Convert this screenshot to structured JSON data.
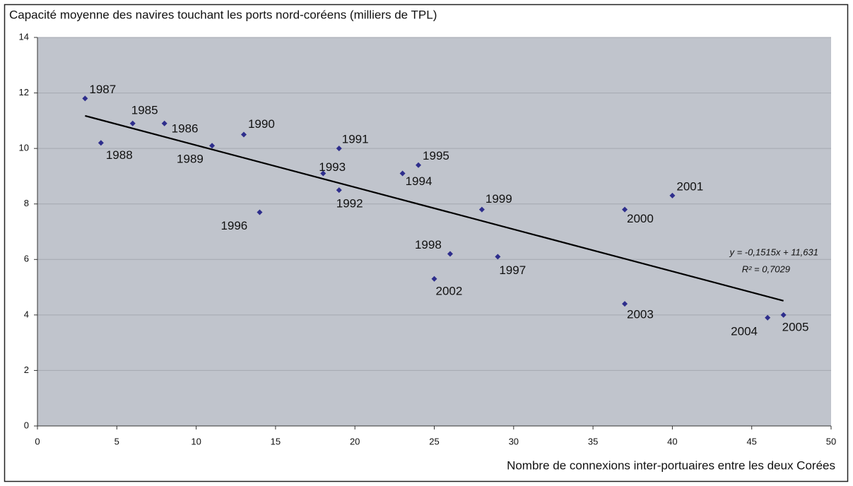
{
  "chart_data": {
    "type": "scatter",
    "title": "Capacité moyenne des navires touchant les ports nord-coréens (milliers de TPL)",
    "x_label": "Nombre de connexions inter-portuaires entre les deux Corées",
    "x": [
      3,
      4,
      6,
      8,
      11,
      13,
      14,
      18,
      19,
      19,
      23,
      24,
      25,
      26,
      28,
      29,
      37,
      37,
      40,
      46,
      47
    ],
    "values": [
      11.8,
      10.2,
      10.9,
      10.9,
      10.1,
      10.5,
      7.7,
      9.1,
      10.0,
      8.5,
      9.1,
      9.4,
      5.3,
      6.2,
      7.8,
      6.1,
      7.8,
      4.4,
      8.3,
      3.9,
      4.0
    ],
    "point_labels": [
      "1987",
      "1988",
      "1985",
      "1986",
      "1989",
      "1990",
      "1996",
      "1993",
      "1991",
      "1992",
      "1994",
      "1995",
      "2002",
      "1998",
      "1999",
      "1997",
      "2000",
      "2003",
      "2001",
      "2004",
      "2005"
    ],
    "color": "#2e2e8c",
    "trendline": {
      "slope": -0.1515,
      "intercept": 11.631,
      "equation": "y = -0,1515x + 11,631",
      "r2": "R² = 0,7029",
      "color": "#000000"
    },
    "xlim": [
      0,
      50
    ],
    "xticks": [
      0,
      5,
      10,
      15,
      20,
      25,
      30,
      35,
      40,
      45,
      50
    ],
    "ylim": [
      0,
      14
    ],
    "yticks": [
      0,
      2,
      4,
      6,
      8,
      10,
      12,
      14
    ],
    "grid": true,
    "plot_background": "#c0c4cc"
  }
}
